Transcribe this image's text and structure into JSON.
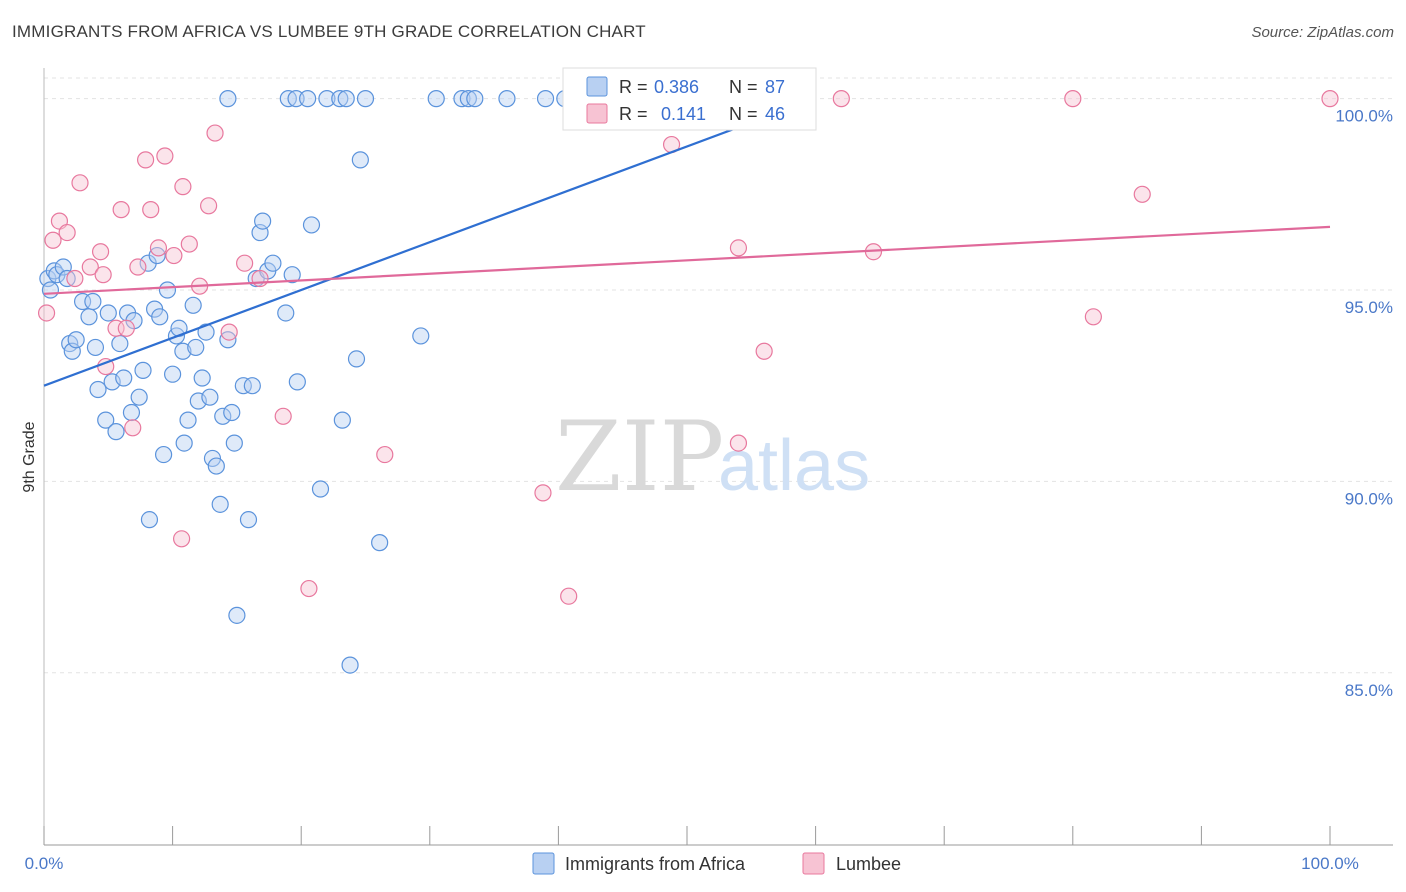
{
  "header": {
    "title": "IMMIGRANTS FROM AFRICA VS LUMBEE 9TH GRADE CORRELATION CHART",
    "source": "Source: ZipAtlas.com"
  },
  "watermark": {
    "zip": "ZIP",
    "atlas": "atlas"
  },
  "colors": {
    "blue": "#5b93dc",
    "blue_fill": "#b8d0f2",
    "pink": "#e8789e",
    "pink_fill": "#f7c3d3",
    "blue_line": "#2f6fd1",
    "pink_line": "#e0699a"
  },
  "legend": {
    "rows": [
      {
        "r_label": "R =",
        "r_value": "0.386",
        "n_label": "N =",
        "n_value": "87"
      },
      {
        "r_label": "R =",
        "r_value": "0.141",
        "n_label": "N =",
        "n_value": "46"
      }
    ]
  },
  "chart_data": {
    "type": "scatter",
    "title": "IMMIGRANTS FROM AFRICA VS LUMBEE 9TH GRADE CORRELATION CHART",
    "xlabel": "",
    "ylabel": "9th Grade",
    "xlim": [
      0,
      100
    ],
    "ylim": [
      80.5,
      100.8
    ],
    "x_tick_labels": [
      "0.0%",
      "100.0%"
    ],
    "y_ticks": [
      85,
      90,
      95,
      100
    ],
    "y_tick_labels": [
      "85.0%",
      "90.0%",
      "95.0%",
      "100.0%"
    ],
    "series": [
      {
        "name": "Immigrants from Africa",
        "color": "#5b93dc",
        "trend": {
          "x": [
            0,
            60
          ],
          "y": [
            92.5,
            100.0
          ]
        },
        "points": [
          [
            0.3,
            95.3
          ],
          [
            0.5,
            95.0
          ],
          [
            0.8,
            95.5
          ],
          [
            1.0,
            95.4
          ],
          [
            1.5,
            95.6
          ],
          [
            1.8,
            95.3
          ],
          [
            2.0,
            93.6
          ],
          [
            2.2,
            93.4
          ],
          [
            2.5,
            93.7
          ],
          [
            3.0,
            94.7
          ],
          [
            3.5,
            94.3
          ],
          [
            3.8,
            94.7
          ],
          [
            4.0,
            93.5
          ],
          [
            4.2,
            92.4
          ],
          [
            4.8,
            91.6
          ],
          [
            5.0,
            94.4
          ],
          [
            5.3,
            92.6
          ],
          [
            5.6,
            91.3
          ],
          [
            5.9,
            93.6
          ],
          [
            6.2,
            92.7
          ],
          [
            6.5,
            94.4
          ],
          [
            6.8,
            91.8
          ],
          [
            7.0,
            94.2
          ],
          [
            7.4,
            92.2
          ],
          [
            7.7,
            92.9
          ],
          [
            8.1,
            95.7
          ],
          [
            8.2,
            89.0
          ],
          [
            8.6,
            94.5
          ],
          [
            8.8,
            95.9
          ],
          [
            9.0,
            94.3
          ],
          [
            9.3,
            90.7
          ],
          [
            9.6,
            95.0
          ],
          [
            10.0,
            92.8
          ],
          [
            10.3,
            93.8
          ],
          [
            10.5,
            94.0
          ],
          [
            10.8,
            93.4
          ],
          [
            10.9,
            91.0
          ],
          [
            11.2,
            91.6
          ],
          [
            11.6,
            94.6
          ],
          [
            11.8,
            93.5
          ],
          [
            12.0,
            92.1
          ],
          [
            12.3,
            92.7
          ],
          [
            12.6,
            93.9
          ],
          [
            12.9,
            92.2
          ],
          [
            13.1,
            90.6
          ],
          [
            13.4,
            90.4
          ],
          [
            13.7,
            89.4
          ],
          [
            13.9,
            91.7
          ],
          [
            14.3,
            93.7
          ],
          [
            14.6,
            91.8
          ],
          [
            14.8,
            91.0
          ],
          [
            15.0,
            86.5
          ],
          [
            15.5,
            92.5
          ],
          [
            15.9,
            89.0
          ],
          [
            16.2,
            92.5
          ],
          [
            16.5,
            95.3
          ],
          [
            16.8,
            96.5
          ],
          [
            17.0,
            96.8
          ],
          [
            17.4,
            95.5
          ],
          [
            17.8,
            95.7
          ],
          [
            18.8,
            94.4
          ],
          [
            19.3,
            95.4
          ],
          [
            19.7,
            92.6
          ],
          [
            20.8,
            96.7
          ],
          [
            21.5,
            89.8
          ],
          [
            23.2,
            91.6
          ],
          [
            23.8,
            85.2
          ],
          [
            24.3,
            93.2
          ],
          [
            24.6,
            98.4
          ],
          [
            26.1,
            88.4
          ],
          [
            29.3,
            93.8
          ],
          [
            14.3,
            100.0
          ],
          [
            19.0,
            100.0
          ],
          [
            19.6,
            100.0
          ],
          [
            20.5,
            100.0
          ],
          [
            22.0,
            100.0
          ],
          [
            23.0,
            100.0
          ],
          [
            23.5,
            100.0
          ],
          [
            25.0,
            100.0
          ],
          [
            30.5,
            100.0
          ],
          [
            32.5,
            100.0
          ],
          [
            33.0,
            100.0
          ],
          [
            33.5,
            100.0
          ],
          [
            36.0,
            100.0
          ],
          [
            39.0,
            100.0
          ],
          [
            40.5,
            100.0
          ],
          [
            42.0,
            100.0
          ]
        ]
      },
      {
        "name": "Lumbee",
        "color": "#e8789e",
        "trend": {
          "x": [
            0,
            100
          ],
          "y": [
            94.9,
            96.65
          ]
        },
        "points": [
          [
            0.2,
            94.4
          ],
          [
            0.7,
            96.3
          ],
          [
            1.2,
            96.8
          ],
          [
            1.8,
            96.5
          ],
          [
            2.8,
            97.8
          ],
          [
            3.6,
            95.6
          ],
          [
            4.4,
            96.0
          ],
          [
            4.6,
            95.4
          ],
          [
            4.8,
            93.0
          ],
          [
            5.6,
            94.0
          ],
          [
            6.0,
            97.1
          ],
          [
            6.4,
            94.0
          ],
          [
            6.9,
            91.4
          ],
          [
            7.3,
            95.6
          ],
          [
            7.9,
            98.4
          ],
          [
            8.3,
            97.1
          ],
          [
            8.9,
            96.1
          ],
          [
            9.4,
            98.5
          ],
          [
            10.1,
            95.9
          ],
          [
            10.7,
            88.5
          ],
          [
            10.8,
            97.7
          ],
          [
            11.3,
            96.2
          ],
          [
            12.1,
            95.1
          ],
          [
            12.8,
            97.2
          ],
          [
            13.3,
            99.1
          ],
          [
            14.4,
            93.9
          ],
          [
            15.6,
            95.7
          ],
          [
            16.8,
            95.3
          ],
          [
            18.6,
            91.7
          ],
          [
            20.6,
            87.2
          ],
          [
            26.5,
            90.7
          ],
          [
            38.8,
            89.7
          ],
          [
            40.8,
            87.0
          ],
          [
            45.5,
            100.0
          ],
          [
            53.0,
            100.0
          ],
          [
            54.0,
            96.1
          ],
          [
            54.0,
            91.0
          ],
          [
            56.0,
            93.4
          ],
          [
            62.0,
            100.0
          ],
          [
            64.5,
            96.0
          ],
          [
            80.0,
            100.0
          ],
          [
            81.6,
            94.3
          ],
          [
            85.4,
            97.5
          ],
          [
            100.0,
            100.0
          ],
          [
            48.8,
            98.8
          ],
          [
            2.4,
            95.3
          ]
        ]
      }
    ]
  }
}
